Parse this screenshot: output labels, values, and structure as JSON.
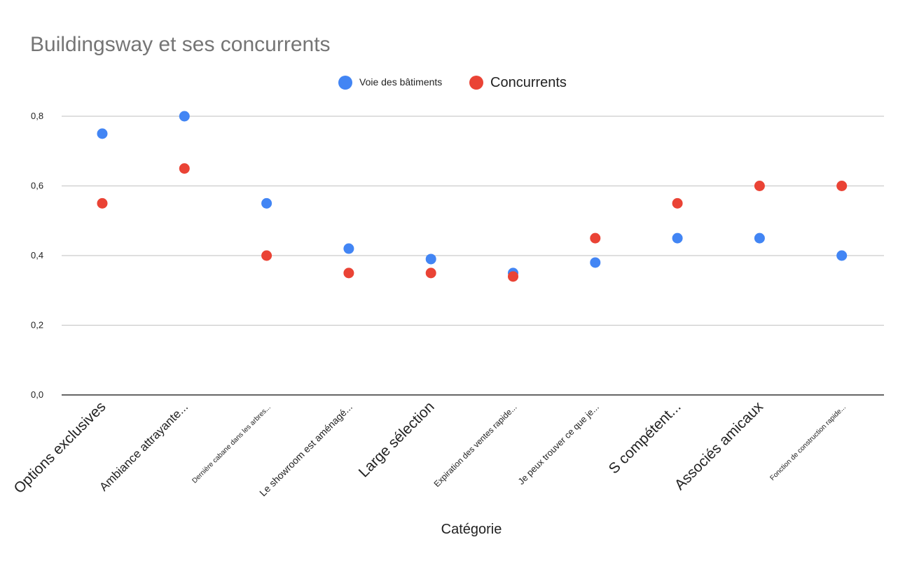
{
  "chart_data": {
    "type": "scatter",
    "title": "Buildingsway et ses concurrents",
    "xlabel": "Catégorie",
    "ylabel": "",
    "ylim": [
      0,
      0.8
    ],
    "yticks": [
      "0,0",
      "0,2",
      "0,4",
      "0,6",
      "0,8"
    ],
    "grid": true,
    "legend_position": "top",
    "categories": [
      "Options exclusives",
      "Ambiance attrayante...",
      "Dernière cabane dans les arbres...",
      "Le showroom est aménagé...",
      "Large sélection",
      "Expiration des ventes rapide...",
      "Je peux trouver ce que je...",
      "S compétent...",
      "Associés amicaux",
      "Fonction de construction rapide..."
    ],
    "category_styles": [
      {
        "size": 21,
        "color": "#000000"
      },
      {
        "size": 17,
        "color": "#555555"
      },
      {
        "size": 10,
        "color": "#222222"
      },
      {
        "size": 14,
        "color": "#333333"
      },
      {
        "size": 21,
        "color": "#000000"
      },
      {
        "size": 12,
        "color": "#222222"
      },
      {
        "size": 13,
        "color": "#222222"
      },
      {
        "size": 21,
        "color": "#555555"
      },
      {
        "size": 21,
        "color": "#000000"
      },
      {
        "size": 10,
        "color": "#555555"
      }
    ],
    "series": [
      {
        "name": "Voie des bâtiments",
        "color": "#4285f4",
        "values": [
          0.75,
          0.8,
          0.55,
          0.42,
          0.39,
          0.35,
          0.38,
          0.45,
          0.45,
          0.4
        ]
      },
      {
        "name": "Concurrents",
        "color": "#ea4335",
        "values": [
          0.55,
          0.65,
          0.4,
          0.35,
          0.35,
          0.34,
          0.45,
          0.55,
          0.6,
          0.6
        ]
      }
    ]
  }
}
